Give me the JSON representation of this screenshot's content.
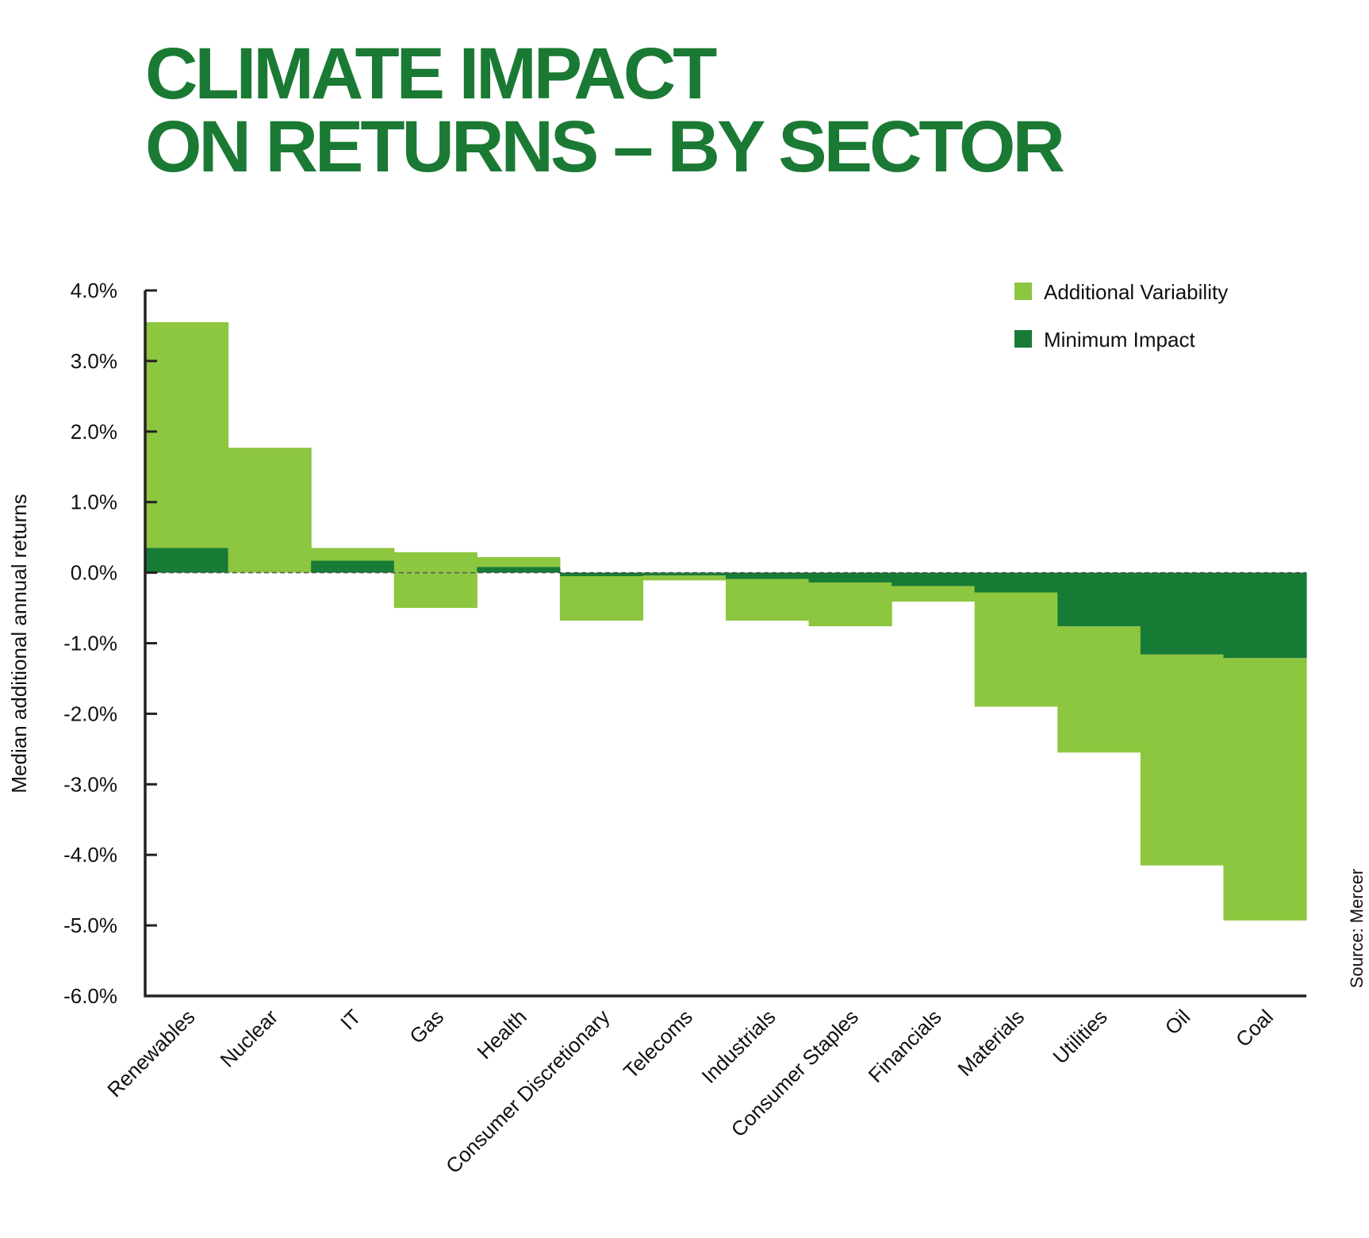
{
  "title_lines": [
    "CLIMATE IMPACT",
    "ON RETURNS – BY SECTOR"
  ],
  "source": "Source: Mercer",
  "colors": {
    "title": "#1a7a34",
    "additional_variability": "#8dc63f",
    "minimum_impact": "#177b35",
    "axis": "#222222"
  },
  "chart_data": {
    "type": "bar",
    "ylabel": "Median additional annual returns",
    "xlabel": "",
    "ylim": [
      -6.0,
      4.0
    ],
    "y_ticks": [
      "4.0%",
      "3.0%",
      "2.0%",
      "1.0%",
      "0.0%",
      "-1.0%",
      "-2.0%",
      "-3.0%",
      "-4.0%",
      "-5.0%",
      "-6.0%"
    ],
    "y_tick_values": [
      4,
      3,
      2,
      1,
      0,
      -1,
      -2,
      -3,
      -4,
      -5,
      -6
    ],
    "legend_position": "top-right",
    "categories": [
      "Renewables",
      "Nuclear",
      "IT",
      "Gas",
      "Health",
      "Consumer Discretionary",
      "Telecoms",
      "Industrials",
      "Consumer Staples",
      "Financials",
      "Materials",
      "Utilities",
      "Oil",
      "Coal"
    ],
    "series": [
      {
        "name": "Additional Variability",
        "color": "#8dc63f",
        "ranges": [
          [
            0.35,
            3.55
          ],
          [
            0.0,
            1.77
          ],
          [
            0.17,
            0.35
          ],
          [
            -0.5,
            0.29
          ],
          [
            0.08,
            0.22
          ],
          [
            -0.68,
            -0.05
          ],
          [
            -0.11,
            -0.04
          ],
          [
            -0.68,
            -0.09
          ],
          [
            -0.76,
            -0.14
          ],
          [
            -0.41,
            -0.19
          ],
          [
            -1.9,
            -0.28
          ],
          [
            -2.55,
            -0.76
          ],
          [
            -4.15,
            -1.16
          ],
          [
            -4.93,
            -1.21
          ]
        ]
      },
      {
        "name": "Minimum Impact",
        "color": "#177b35",
        "values": [
          0.35,
          0.0,
          0.17,
          0.0,
          0.08,
          -0.05,
          -0.04,
          -0.09,
          -0.14,
          -0.19,
          -0.28,
          -0.76,
          -1.16,
          -1.21
        ]
      }
    ]
  }
}
